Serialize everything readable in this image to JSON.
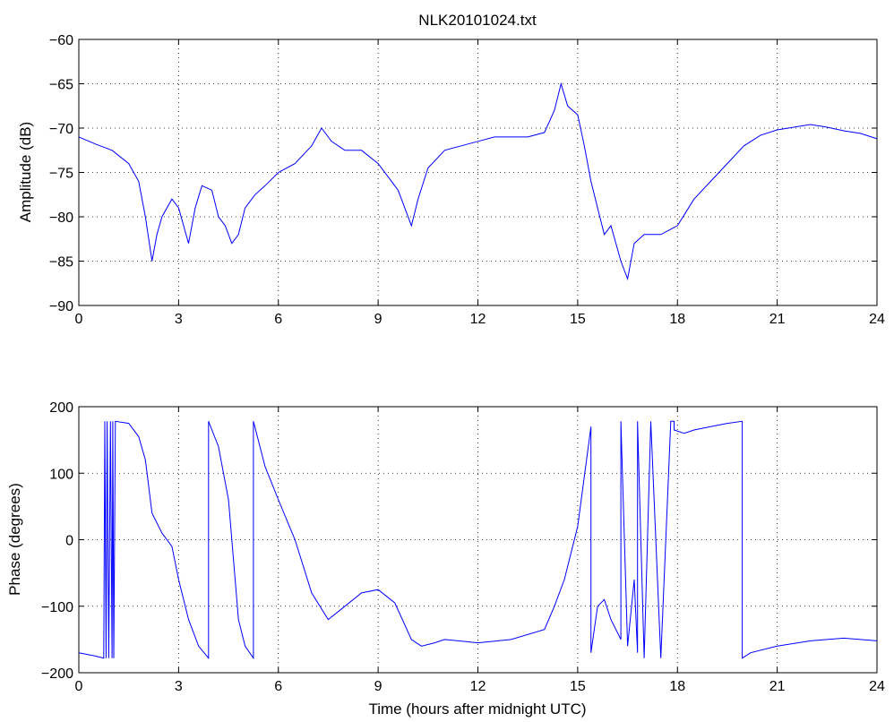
{
  "title": "NLK20101024.txt",
  "colors": {
    "series": "#0000ff",
    "axes": "#000000",
    "background": "#ffffff"
  },
  "chart_data": [
    {
      "type": "line",
      "title": "NLK20101024.txt",
      "xlabel": "",
      "ylabel": "Amplitude (dB)",
      "xlim": [
        0,
        24
      ],
      "ylim": [
        -90,
        -60
      ],
      "xticks": [
        "0",
        "3",
        "6",
        "9",
        "12",
        "15",
        "18",
        "21",
        "24"
      ],
      "yticks": [
        "-90",
        "-85",
        "-80",
        "-75",
        "-70",
        "-65",
        "-60"
      ],
      "grid": true,
      "series": [
        {
          "color": "#0000ff",
          "x": [
            0,
            0.5,
            1.0,
            1.5,
            1.8,
            2.0,
            2.2,
            2.35,
            2.5,
            2.8,
            3.0,
            3.3,
            3.5,
            3.7,
            4.0,
            4.2,
            4.4,
            4.6,
            4.8,
            5.0,
            5.3,
            5.6,
            6.0,
            6.5,
            7.0,
            7.3,
            7.6,
            8.0,
            8.5,
            9.0,
            9.3,
            9.6,
            10.0,
            10.2,
            10.5,
            11.0,
            11.5,
            12.0,
            12.5,
            13.0,
            13.5,
            14.0,
            14.3,
            14.5,
            14.7,
            15.0,
            15.2,
            15.4,
            15.6,
            15.8,
            16.0,
            16.3,
            16.5,
            16.7,
            17.0,
            17.5,
            18.0,
            18.5,
            19.0,
            19.5,
            20.0,
            20.5,
            21.0,
            21.5,
            22.0,
            22.5,
            23.0,
            23.5,
            24.0
          ],
          "y": [
            -71,
            -71.8,
            -72.5,
            -74,
            -76,
            -80,
            -85,
            -82,
            -80,
            -78,
            -79,
            -83,
            -79,
            -76.5,
            -77,
            -80,
            -81,
            -83,
            -82,
            -79,
            -77.5,
            -76.5,
            -75,
            -74,
            -72,
            -70,
            -71.5,
            -72.5,
            -72.5,
            -74,
            -75.5,
            -77,
            -81,
            -78,
            -74.5,
            -72.5,
            -72,
            -71.5,
            -71,
            -71,
            -71,
            -70.5,
            -68,
            -65,
            -67.5,
            -68.5,
            -72,
            -76,
            -79,
            -82,
            -81,
            -85,
            -87,
            -83,
            -82,
            -82,
            -81,
            -78,
            -76,
            -74,
            -72,
            -70.8,
            -70.2,
            -69.9,
            -69.6,
            -69.9,
            -70.3,
            -70.6,
            -71.2
          ]
        }
      ]
    },
    {
      "type": "line",
      "title": "",
      "xlabel": "Time (hours after midnight UTC)",
      "ylabel": "Phase (degrees)",
      "xlim": [
        0,
        24
      ],
      "ylim": [
        -200,
        200
      ],
      "xticks": [
        "0",
        "3",
        "6",
        "9",
        "12",
        "15",
        "18",
        "21",
        "24"
      ],
      "yticks": [
        "-200",
        "-100",
        "0",
        "100",
        "200"
      ],
      "grid": true,
      "series": [
        {
          "color": "#0000ff",
          "x": [
            0,
            0.5,
            0.75,
            0.78,
            0.82,
            0.85,
            0.9,
            0.95,
            1.0,
            1.02,
            1.05,
            1.1,
            1.5,
            1.8,
            2.0,
            2.2,
            2.5,
            2.8,
            3.0,
            3.3,
            3.6,
            3.9,
            3.9,
            4.2,
            4.5,
            4.8,
            5.0,
            5.25,
            5.25,
            5.6,
            6.0,
            6.5,
            7.0,
            7.5,
            8.0,
            8.5,
            9.0,
            9.5,
            10.0,
            10.3,
            10.7,
            11.0,
            12.0,
            13.0,
            14.0,
            14.3,
            14.6,
            15.0,
            15.4,
            15.4,
            15.6,
            15.8,
            16.0,
            16.3,
            16.3,
            16.5,
            16.7,
            16.8,
            16.8,
            17.0,
            17.2,
            17.5,
            17.8,
            17.9,
            17.9,
            18.2,
            18.5,
            19.0,
            19.5,
            19.95,
            19.95,
            20.2,
            21.0,
            22.0,
            23.0,
            24.0
          ],
          "y": [
            -170,
            -175,
            -178,
            178,
            -178,
            178,
            -178,
            178,
            -178,
            178,
            -178,
            178,
            175,
            155,
            120,
            40,
            10,
            -10,
            -60,
            -120,
            -160,
            -178,
            178,
            140,
            60,
            -120,
            -160,
            -178,
            178,
            110,
            60,
            0,
            -80,
            -120,
            -100,
            -80,
            -75,
            -95,
            -150,
            -160,
            -155,
            -150,
            -155,
            -150,
            -135,
            -100,
            -60,
            20,
            170,
            -170,
            -100,
            -90,
            -120,
            -150,
            178,
            -160,
            -60,
            -170,
            178,
            -178,
            178,
            -178,
            178,
            178,
            165,
            160,
            165,
            170,
            175,
            178,
            -178,
            -170,
            -160,
            -152,
            -148,
            -152
          ]
        }
      ]
    }
  ]
}
